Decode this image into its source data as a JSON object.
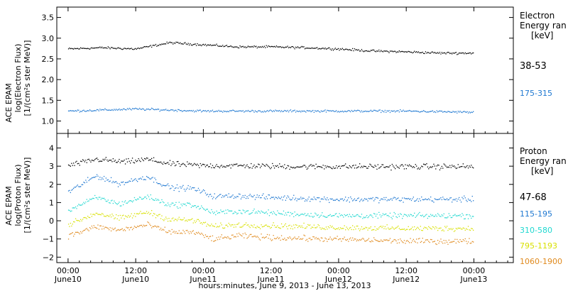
{
  "chart_data": {
    "type": "scatter",
    "x_axis": {
      "label": "hours:minutes, June  9, 2013 - June 13, 2013",
      "ticks": [
        {
          "time": "00:00",
          "day": "June10",
          "hour": 0
        },
        {
          "time": "12:00",
          "day": "June10",
          "hour": 12
        },
        {
          "time": "00:00",
          "day": "June11",
          "hour": 24
        },
        {
          "time": "12:00",
          "day": "June11",
          "hour": 36
        },
        {
          "time": "00:00",
          "day": "June12",
          "hour": 48
        },
        {
          "time": "12:00",
          "day": "June12",
          "hour": 60
        },
        {
          "time": "00:00",
          "day": "June13",
          "hour": 72
        }
      ],
      "range_hours": [
        -2,
        79
      ]
    },
    "panels": [
      {
        "name": "Electron",
        "ylabel_lines": [
          "ACE EPAM",
          "log(Electron Flux)",
          "[1/(cm²s ster MeV)]"
        ],
        "legend_title": [
          "Electron",
          "Energy ran",
          "[keV]"
        ],
        "ylim": [
          0.7,
          3.75
        ],
        "yticks": [
          "1.0",
          "1.5",
          "2.0",
          "2.5",
          "3.0",
          "3.5"
        ],
        "series": [
          {
            "name": "38-53",
            "color": "#000000",
            "x": [
              0,
              6,
              12,
              18,
              24,
              30,
              36,
              42,
              48,
              54,
              60,
              66,
              72
            ],
            "y": [
              2.75,
              2.78,
              2.75,
              2.9,
              2.85,
              2.8,
              2.8,
              2.78,
              2.75,
              2.7,
              2.68,
              2.65,
              2.65
            ]
          },
          {
            "name": "175-315",
            "color": "#1f78d1",
            "x": [
              0,
              12,
              24,
              36,
              48,
              60,
              72
            ],
            "y": [
              1.25,
              1.3,
              1.25,
              1.25,
              1.25,
              1.25,
              1.22
            ]
          }
        ]
      },
      {
        "name": "Proton",
        "ylabel_lines": [
          "ACE EPAM",
          "log(Proton Flux)",
          "[1/(cm²s ster MeV)]"
        ],
        "legend_title": [
          "Proton",
          "Energy ran",
          "[keV]"
        ],
        "ylim": [
          -2.3,
          4.8
        ],
        "yticks": [
          "−2",
          "−1",
          "0",
          "1",
          "2",
          "3",
          "4"
        ],
        "series": [
          {
            "name": "47-68",
            "color": "#000000",
            "x": [
              0,
              5,
              10,
              14,
              18,
              24,
              30,
              40,
              50,
              60,
              72
            ],
            "y": [
              3.05,
              3.4,
              3.25,
              3.4,
              3.15,
              3.05,
              3.05,
              3.0,
              3.0,
              3.0,
              3.0
            ]
          },
          {
            "name": "115-195",
            "color": "#1f78d1",
            "x": [
              0,
              5,
              9,
              14,
              18,
              22,
              26,
              30,
              36,
              48,
              60,
              72
            ],
            "y": [
              1.6,
              2.5,
              2.05,
              2.45,
              1.85,
              1.8,
              1.35,
              1.4,
              1.3,
              1.2,
              1.2,
              1.2
            ]
          },
          {
            "name": "310-580",
            "color": "#20d8d0",
            "x": [
              0,
              5,
              9,
              14,
              18,
              22,
              26,
              30,
              36,
              48,
              60,
              72
            ],
            "y": [
              0.6,
              1.3,
              0.95,
              1.35,
              0.9,
              0.9,
              0.45,
              0.55,
              0.45,
              0.3,
              0.3,
              0.3
            ]
          },
          {
            "name": "795-1193",
            "color": "#d8e000",
            "x": [
              0,
              5,
              9,
              14,
              18,
              22,
              26,
              30,
              36,
              48,
              60,
              72
            ],
            "y": [
              -0.2,
              0.45,
              0.15,
              0.5,
              0.1,
              0.05,
              -0.3,
              -0.2,
              -0.25,
              -0.35,
              -0.4,
              -0.4
            ]
          },
          {
            "name": "1060-1900",
            "color": "#e08a1e",
            "x": [
              0,
              5,
              9,
              14,
              18,
              22,
              26,
              30,
              36,
              48,
              60,
              72
            ],
            "y": [
              -0.8,
              -0.3,
              -0.5,
              -0.2,
              -0.6,
              -0.6,
              -1.0,
              -0.8,
              -0.9,
              -1.0,
              -1.1,
              -1.1
            ]
          }
        ]
      }
    ]
  }
}
